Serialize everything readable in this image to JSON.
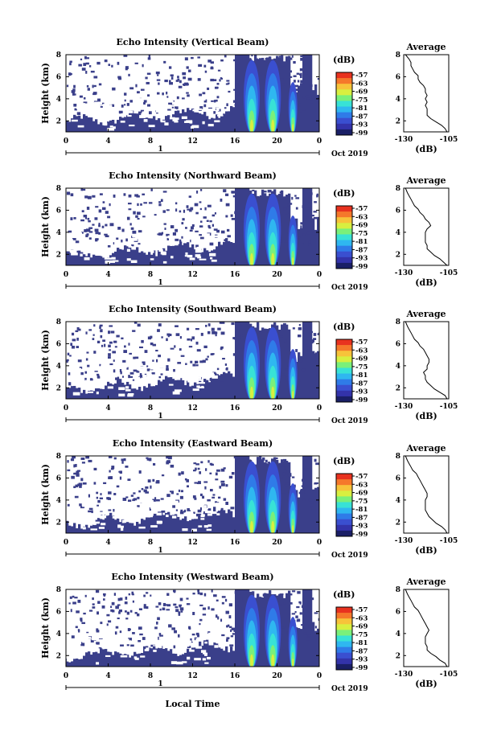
{
  "chart_data": {
    "type": "heatmap",
    "colormap": [
      "#1a1f66",
      "#3333aa",
      "#3a4fd0",
      "#2f7be8",
      "#2fb7f0",
      "#38e2d6",
      "#7af07a",
      "#d8ef40",
      "#f7c33a",
      "#f5782b",
      "#e8321f"
    ],
    "colorbar": {
      "unit": "(dB)",
      "ticks": [
        "-57",
        "-63",
        "-69",
        "-75",
        "-81",
        "-87",
        "-93",
        "-99"
      ]
    },
    "panels": [
      {
        "title": "Echo Intensity (Vertical Beam)",
        "average": {
          "title": "Average",
          "xlabel": "(dB)",
          "xlim": [
            -130,
            -105
          ],
          "xticks": [
            "-130",
            "-105"
          ],
          "ylim": [
            1,
            8
          ],
          "yticks": [
            "2",
            "4",
            "6",
            "8"
          ],
          "profile": [
            [
              1.0,
              -106
            ],
            [
              1.3,
              -107
            ],
            [
              1.6,
              -109
            ],
            [
              1.9,
              -112
            ],
            [
              2.2,
              -115
            ],
            [
              2.5,
              -117
            ],
            [
              2.8,
              -117
            ],
            [
              3.1,
              -117
            ],
            [
              3.4,
              -118
            ],
            [
              3.7,
              -117
            ],
            [
              4.0,
              -118
            ],
            [
              4.3,
              -117
            ],
            [
              4.6,
              -118
            ],
            [
              4.9,
              -118
            ],
            [
              5.2,
              -119
            ],
            [
              5.5,
              -121
            ],
            [
              5.8,
              -122
            ],
            [
              6.1,
              -122
            ],
            [
              6.4,
              -124
            ],
            [
              6.7,
              -125
            ],
            [
              7.0,
              -126
            ],
            [
              7.3,
              -126
            ],
            [
              7.6,
              -127
            ],
            [
              8.0,
              -129
            ]
          ]
        }
      },
      {
        "title": "Echo Intensity (Northward Beam)",
        "average": {
          "title": "Average",
          "xlabel": "(dB)",
          "xlim": [
            -130,
            -105
          ],
          "xticks": [
            "-130",
            "-105"
          ],
          "ylim": [
            1,
            8
          ],
          "yticks": [
            "2",
            "4",
            "6",
            "8"
          ],
          "profile": [
            [
              1.0,
              -106
            ],
            [
              1.3,
              -108
            ],
            [
              1.6,
              -110
            ],
            [
              1.9,
              -113
            ],
            [
              2.2,
              -115
            ],
            [
              2.5,
              -117
            ],
            [
              2.8,
              -117
            ],
            [
              3.1,
              -118
            ],
            [
              3.4,
              -118
            ],
            [
              3.7,
              -118
            ],
            [
              4.0,
              -118
            ],
            [
              4.3,
              -117
            ],
            [
              4.6,
              -115
            ],
            [
              4.9,
              -116
            ],
            [
              5.2,
              -118
            ],
            [
              5.5,
              -119
            ],
            [
              5.8,
              -121
            ],
            [
              6.1,
              -122
            ],
            [
              6.4,
              -124
            ],
            [
              6.7,
              -125
            ],
            [
              7.0,
              -126
            ],
            [
              7.3,
              -127
            ],
            [
              7.6,
              -128
            ],
            [
              8.0,
              -129
            ]
          ]
        }
      },
      {
        "title": "Echo Intensity (Southward Beam)",
        "average": {
          "title": "Average",
          "xlabel": "(dB)",
          "xlim": [
            -130,
            -105
          ],
          "xticks": [
            "-130",
            "-105"
          ],
          "ylim": [
            1,
            8
          ],
          "yticks": [
            "2",
            "4",
            "6",
            "8"
          ],
          "profile": [
            [
              1.0,
              -106
            ],
            [
              1.3,
              -107
            ],
            [
              1.6,
              -110
            ],
            [
              1.9,
              -113
            ],
            [
              2.2,
              -115
            ],
            [
              2.5,
              -117
            ],
            [
              2.8,
              -118
            ],
            [
              3.1,
              -118
            ],
            [
              3.4,
              -119
            ],
            [
              3.7,
              -117
            ],
            [
              4.0,
              -117
            ],
            [
              4.3,
              -116
            ],
            [
              4.6,
              -116
            ],
            [
              4.9,
              -117
            ],
            [
              5.2,
              -118
            ],
            [
              5.5,
              -119
            ],
            [
              5.8,
              -121
            ],
            [
              6.1,
              -122
            ],
            [
              6.4,
              -124
            ],
            [
              6.7,
              -125
            ],
            [
              7.0,
              -126
            ],
            [
              7.3,
              -127
            ],
            [
              7.6,
              -128
            ],
            [
              8.0,
              -129
            ]
          ]
        }
      },
      {
        "title": "Echo Intensity (Eastward Beam)",
        "average": {
          "title": "Average",
          "xlabel": "(dB)",
          "xlim": [
            -130,
            -105
          ],
          "xticks": [
            "-130",
            "-105"
          ],
          "ylim": [
            1,
            8
          ],
          "yticks": [
            "2",
            "4",
            "6",
            "8"
          ],
          "profile": [
            [
              1.0,
              -106
            ],
            [
              1.3,
              -107
            ],
            [
              1.6,
              -109
            ],
            [
              1.9,
              -112
            ],
            [
              2.2,
              -114
            ],
            [
              2.5,
              -116
            ],
            [
              2.8,
              -117
            ],
            [
              3.1,
              -118
            ],
            [
              3.4,
              -118
            ],
            [
              3.7,
              -118
            ],
            [
              4.0,
              -118
            ],
            [
              4.3,
              -117
            ],
            [
              4.6,
              -117
            ],
            [
              4.9,
              -118
            ],
            [
              5.2,
              -119
            ],
            [
              5.5,
              -120
            ],
            [
              5.8,
              -121
            ],
            [
              6.1,
              -122
            ],
            [
              6.4,
              -123
            ],
            [
              6.7,
              -125
            ],
            [
              7.0,
              -126
            ],
            [
              7.3,
              -127
            ],
            [
              7.6,
              -128
            ],
            [
              8.0,
              -129
            ]
          ]
        }
      },
      {
        "title": "Echo Intensity (Westward Beam)",
        "average": {
          "title": "Average",
          "xlabel": "(dB)",
          "xlim": [
            -130,
            -105
          ],
          "xticks": [
            "-130",
            "-105"
          ],
          "ylim": [
            1,
            8
          ],
          "yticks": [
            "2",
            "4",
            "6",
            "8"
          ],
          "profile": [
            [
              1.0,
              -106
            ],
            [
              1.3,
              -107
            ],
            [
              1.6,
              -110
            ],
            [
              1.9,
              -112
            ],
            [
              2.2,
              -115
            ],
            [
              2.5,
              -117
            ],
            [
              2.8,
              -117
            ],
            [
              3.1,
              -118
            ],
            [
              3.4,
              -118
            ],
            [
              3.7,
              -118
            ],
            [
              4.0,
              -117
            ],
            [
              4.3,
              -116
            ],
            [
              4.6,
              -117
            ],
            [
              4.9,
              -118
            ],
            [
              5.2,
              -119
            ],
            [
              5.5,
              -120
            ],
            [
              5.8,
              -121
            ],
            [
              6.1,
              -122
            ],
            [
              6.4,
              -124
            ],
            [
              6.7,
              -125
            ],
            [
              7.0,
              -126
            ],
            [
              7.3,
              -127
            ],
            [
              7.6,
              -128
            ],
            [
              8.0,
              -129
            ]
          ]
        }
      }
    ],
    "main_axes": {
      "ylabel": "Height (km)",
      "yticks": [
        "2",
        "4",
        "6",
        "8"
      ],
      "ylim": [
        1,
        8
      ],
      "xticks": [
        "0",
        "4",
        "8",
        "12",
        "16",
        "20",
        "0"
      ],
      "xlim_hours": [
        0,
        24
      ],
      "day_label": "1",
      "month_label": "Oct 2019",
      "xlabel_bottom": "Local Time"
    },
    "rain_bands_hours": [
      17.6,
      19.6,
      21.5
    ]
  }
}
